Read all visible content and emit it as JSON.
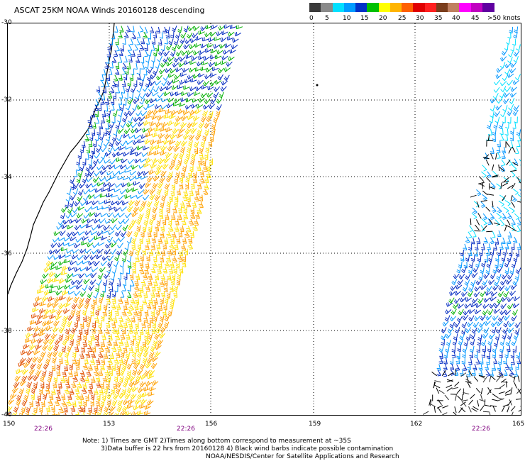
{
  "title": "ASCAT 25KM NOAA Winds 20160128 descending",
  "legend": {
    "colors": [
      "#3a3a3a",
      "#8a8a8a",
      "#00e0ff",
      "#009cff",
      "#0032c8",
      "#00c000",
      "#ffff00",
      "#ffb400",
      "#ff6000",
      "#e00000",
      "#ff2020",
      "#7a3d1c",
      "#c08060",
      "#ff00ff",
      "#c000c0",
      "#6000a0"
    ],
    "labels": [
      "0",
      "5",
      "10",
      "15",
      "20",
      "25",
      "30",
      "35",
      "40",
      "45",
      ">50 knots"
    ]
  },
  "map": {
    "lat_labels": [
      "-30",
      "-32",
      "-34",
      "-36",
      "-38",
      "-40"
    ],
    "lon_labels": [
      "150",
      "153",
      "156",
      "159",
      "162",
      "165"
    ],
    "time_labels": [
      "22:26",
      "22:26",
      "22:26"
    ]
  },
  "notes": {
    "line1": "Note: 1) Times are GMT 2)Times along bottom correspond to measurement at ~35S",
    "line2": "3)Data buffer is 22 hrs from 20160128 4) Black wind barbs indicate possible contamination",
    "line3": "NOAA/NESDIS/Center for Satellite Applications and Research"
  },
  "barb_colors": {
    "lt5": "#303030",
    "k5_10": "#00e0ff",
    "k10_15": "#0096ff",
    "k15_20": "#0028c0",
    "k20_25": "#00b000",
    "k25_30": "#ffe000",
    "k30_35": "#ffa000",
    "k35_40": "#e05000",
    "contaminated": "#000000"
  }
}
